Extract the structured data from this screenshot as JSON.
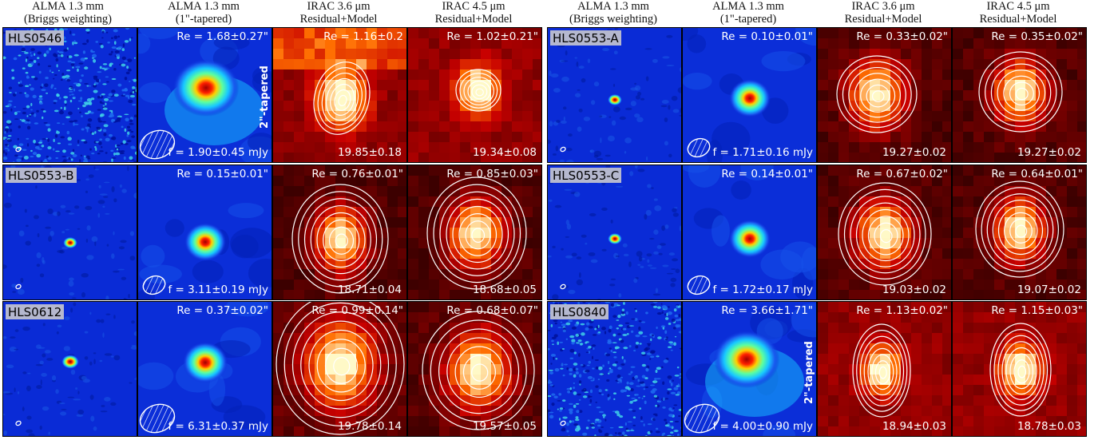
{
  "headers": [
    {
      "line1": "ALMA 1.3 mm",
      "line2": "(Briggs weighting)"
    },
    {
      "line1": "ALMA 1.3 mm",
      "line2": "(1\"-tapered)"
    },
    {
      "line1": "IRAC 3.6 μm",
      "line2": "Residual+Model"
    },
    {
      "line1": "IRAC 4.5 μm",
      "line2": "Residual+Model"
    },
    {
      "line1": "ALMA 1.3 mm",
      "line2": "(Briggs weighting)"
    },
    {
      "line1": "ALMA 1.3 mm",
      "line2": "(1\"-tapered)"
    },
    {
      "line1": "IRAC 3.6 μm",
      "line2": "Residual+Model"
    },
    {
      "line1": "IRAC 4.5 μm",
      "line2": "Residual+Model"
    }
  ],
  "sources": [
    {
      "name": "HLS0546",
      "taper_label": "2\"-tapered",
      "alma_re": "Re = 1.68±0.27\"",
      "flux": "f = 1.90±0.45 mJy",
      "irac1_re": "Re = 1.16±0.2",
      "irac1_mag": "19.85±0.18",
      "irac2_re": "Re = 1.02±0.21\"",
      "irac2_mag": "19.34±0.08"
    },
    {
      "name": "HLS0553-A",
      "taper_label": "",
      "alma_re": "Re = 0.10±0.01\"",
      "flux": "f = 1.71±0.16 mJy",
      "irac1_re": "Re = 0.33±0.02\"",
      "irac1_mag": "19.27±0.02",
      "irac2_re": "Re = 0.35±0.02\"",
      "irac2_mag": "19.27±0.02"
    },
    {
      "name": "HLS0553-B",
      "taper_label": "",
      "alma_re": "Re = 0.15±0.01\"",
      "flux": "f = 3.11±0.19 mJy",
      "irac1_re": "Re = 0.76±0.01\"",
      "irac1_mag": "18.71±0.04",
      "irac2_re": "Re = 0.85±0.03\"",
      "irac2_mag": "18.68±0.05"
    },
    {
      "name": "HLS0553-C",
      "taper_label": "",
      "alma_re": "Re = 0.14±0.01\"",
      "flux": "f = 1.72±0.17 mJy",
      "irac1_re": "Re = 0.67±0.02\"",
      "irac1_mag": "19.03±0.02",
      "irac2_re": "Re = 0.64±0.01\"",
      "irac2_mag": "19.07±0.02"
    },
    {
      "name": "HLS0612",
      "taper_label": "",
      "alma_re": "Re = 0.37±0.02\"",
      "flux": "f = 6.31±0.37 mJy",
      "irac1_re": "Re = 0.99±0.14\"",
      "irac1_mag": "19.78±0.14",
      "irac2_re": "Re = 0.68±0.07\"",
      "irac2_mag": "19.57±0.05"
    },
    {
      "name": "HLS0840",
      "taper_label": "2\"-tapered",
      "alma_re": "Re = 3.66±1.71\"",
      "flux": "f = 4.00±0.90 mJy",
      "irac1_re": "Re = 1.13±0.02\"",
      "irac1_mag": "18.94±0.03",
      "irac2_re": "Re = 1.15±0.03\"",
      "irac2_mag": "18.78±0.03"
    }
  ]
}
